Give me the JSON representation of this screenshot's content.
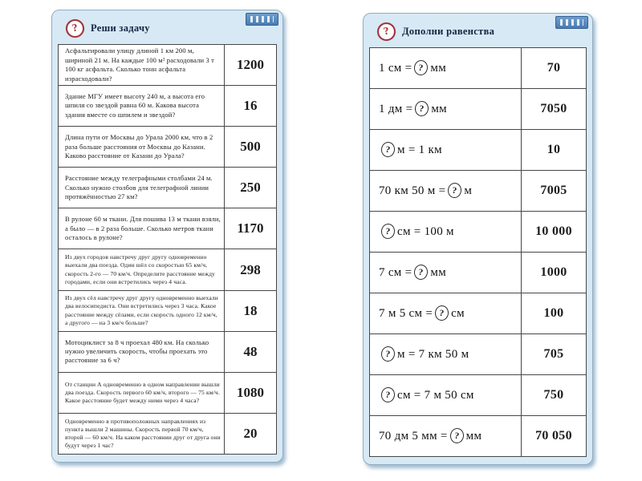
{
  "icons": {
    "question_glyph": "?"
  },
  "colors": {
    "panel_bg": "#d7e9f5",
    "border_dark": "#474747",
    "icon_red": "#9e2b31",
    "badge_blue": "#4a7cb0",
    "title_navy": "#16233f"
  },
  "left_panel": {
    "title": "Реши задачу",
    "rows": [
      {
        "problem": "Асфальтировали улицу длиной 1 км 200 м, шириной 21 м. На каждые 100 м² расходовали 3 т 100 кг асфальта. Сколько тонн асфальта израсходовали?",
        "answer": "1200"
      },
      {
        "problem": "Здание МГУ имеет высоту 240 м, а высота его шпиля со звездой равна 60 м. Какова высота здания вместе со шпилем и звездой?",
        "answer": "16"
      },
      {
        "problem": "Длина пути от Москвы до Урала 2000 км, что в 2 раза больше расстояния от Москвы до Казани. Каково расстояние от Казани до Урала?",
        "answer": "500"
      },
      {
        "problem": "Расстояние между телеграфными столбами 24 м. Сколько нужно столбов для телеграфной линии протяжённостью 27 км?",
        "answer": "250"
      },
      {
        "problem": "В рулоне 60 м ткани. Для пошива 13 м ткани взяли, а было — в 2 раза больше. Сколько метров ткани осталось в рулоне?",
        "answer": "1170"
      },
      {
        "problem": "Из двух городов навстречу друг другу одновременно выехали два поезда. Один шёл со скоростью 65 км/ч, скорость 2-го — 70 км/ч. Определите расстояние между городами, если они встретились через 4 часа.",
        "answer": "298"
      },
      {
        "problem": "Из двух сёл навстречу друг другу одновременно выехали два велосипедиста. Они встретились через 3 часа. Какое расстояние между сёлами, если скорость одного 12 км/ч, а другого — на 3 км/ч больше?",
        "answer": "18"
      },
      {
        "problem": "Мотоциклист за 8 ч проехал 480 км. На сколько нужно увеличить скорость, чтобы проехать это расстояние за 6 ч?",
        "answer": "48"
      },
      {
        "problem": "От станции А одновременно в одном направлении вышли два поезда. Скорость первого 60 км/ч, второго — 75 км/ч. Какое расстояние будет между ними через 4 часа?",
        "answer": "1080"
      },
      {
        "problem": "Одновременно в противоположных направлениях из пункта вышли 2 машины. Скорость первой 70 км/ч, второй — 60 км/ч. На каком расстоянии друг от друга они будут через 1 час?",
        "answer": "20"
      }
    ]
  },
  "right_panel": {
    "title": "Дополни равенства",
    "qmark": "?",
    "rows": [
      {
        "before": "1 см = ",
        "after": " мм",
        "answer": "70"
      },
      {
        "before": "1 дм = ",
        "after": " мм",
        "answer": "7050"
      },
      {
        "before": "",
        "after": " м = 1 км",
        "answer": "10"
      },
      {
        "before": "70 км 50 м = ",
        "after": " м",
        "answer": "7005"
      },
      {
        "before": "",
        "after": " см = 100 м",
        "answer": "10 000"
      },
      {
        "before": "7 см = ",
        "after": " мм",
        "answer": "1000"
      },
      {
        "before": "7 м 5 см = ",
        "after": " см",
        "answer": "100"
      },
      {
        "before": "",
        "after": " м = 7 км 50 м",
        "answer": "705"
      },
      {
        "before": "",
        "after": " см = 7 м 50 см",
        "answer": "750"
      },
      {
        "before": "70 дм 5 мм = ",
        "after": " мм",
        "answer": "70 050"
      }
    ]
  }
}
